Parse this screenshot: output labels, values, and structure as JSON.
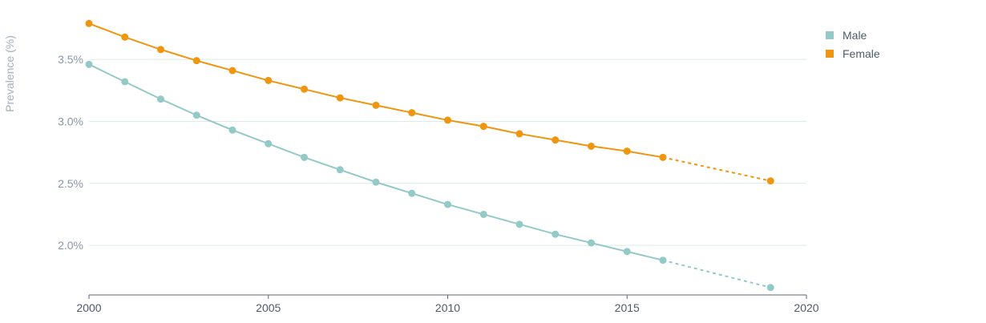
{
  "chart_data": {
    "type": "line",
    "ylabel": "Prevalence (%)",
    "xlim": [
      2000,
      2020
    ],
    "ylim": [
      1.6,
      3.85
    ],
    "x_ticks": [
      2000,
      2005,
      2010,
      2015,
      2020
    ],
    "x_tick_labels": [
      "2000",
      "2005",
      "2010",
      "2015",
      "2020"
    ],
    "y_ticks": [
      2.0,
      2.5,
      3.0,
      3.5
    ],
    "y_tick_labels": [
      "2.0%",
      "2.5%",
      "3.0%",
      "3.5%"
    ],
    "grid": true,
    "legend_position": "top-right",
    "series": [
      {
        "name": "Male",
        "color": "#93c9c7",
        "x": [
          2000,
          2001,
          2002,
          2003,
          2004,
          2005,
          2006,
          2007,
          2008,
          2009,
          2010,
          2011,
          2012,
          2013,
          2014,
          2015,
          2016,
          2019
        ],
        "y": [
          3.46,
          3.32,
          3.18,
          3.05,
          2.93,
          2.82,
          2.71,
          2.61,
          2.51,
          2.42,
          2.33,
          2.25,
          2.17,
          2.09,
          2.02,
          1.95,
          1.88,
          1.66
        ],
        "projected_from_x": 2016
      },
      {
        "name": "Female",
        "color": "#ef950f",
        "x": [
          2000,
          2001,
          2002,
          2003,
          2004,
          2005,
          2006,
          2007,
          2008,
          2009,
          2010,
          2011,
          2012,
          2013,
          2014,
          2015,
          2016,
          2019
        ],
        "y": [
          3.79,
          3.68,
          3.58,
          3.49,
          3.41,
          3.33,
          3.26,
          3.19,
          3.13,
          3.07,
          3.01,
          2.96,
          2.9,
          2.85,
          2.8,
          2.76,
          2.71,
          2.52
        ],
        "projected_from_x": 2016
      }
    ]
  }
}
